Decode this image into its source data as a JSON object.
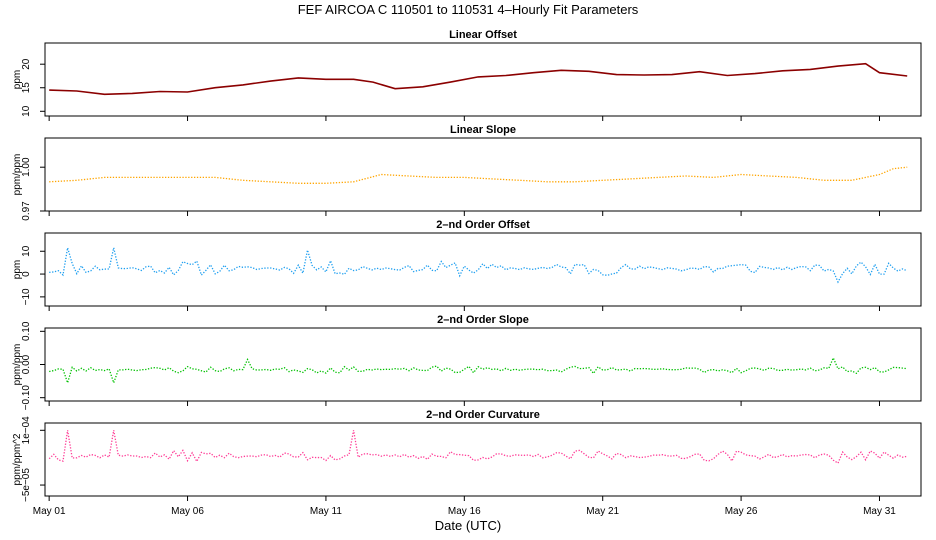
{
  "title": "FEF   AIRCOA C   110501 to 110531   4–Hourly Fit Parameters",
  "xlabel": "Date (UTC)",
  "x_ticks": [
    "May 01",
    "May 06",
    "May 11",
    "May 16",
    "May 21",
    "May 26",
    "May 31"
  ],
  "chart_data": [
    {
      "type": "line",
      "title": "Linear Offset",
      "ylabel": "ppm",
      "xlim": [
        0.85,
        32.5
      ],
      "ylim": [
        9.0,
        24.5
      ],
      "yticks": [
        10,
        15,
        20
      ],
      "ytick_labels": [
        "10",
        "15",
        "20"
      ],
      "color": "#8b0000",
      "style": "line",
      "series": [
        {
          "x": [
            1.0,
            2.0,
            3.0,
            4.0,
            5.0,
            6.0,
            7.0,
            8.0,
            9.0,
            10.0,
            11.0,
            12.0,
            12.7,
            13.5,
            14.5,
            15.5,
            16.5,
            17.5,
            18.5,
            19.5,
            20.5,
            21.5,
            22.5,
            23.5,
            24.5,
            25.5,
            26.5,
            27.5,
            28.5,
            29.5,
            30.5,
            31.0,
            32.0
          ],
          "y": [
            14.5,
            14.3,
            13.6,
            13.8,
            14.2,
            14.1,
            15.0,
            15.6,
            16.4,
            17.1,
            16.8,
            16.8,
            16.2,
            14.8,
            15.2,
            16.2,
            17.3,
            17.6,
            18.2,
            18.7,
            18.5,
            17.8,
            17.7,
            17.8,
            18.4,
            17.6,
            18.0,
            18.6,
            18.9,
            19.6,
            20.1,
            18.2,
            17.5
          ]
        }
      ]
    },
    {
      "type": "line",
      "title": "Linear Slope",
      "ylabel": "ppm/ppm",
      "xlim": [
        0.85,
        32.5
      ],
      "ylim": [
        0.97,
        1.02
      ],
      "yticks": [
        0.97,
        1.0
      ],
      "ytick_labels": [
        "0.97",
        "1.00"
      ],
      "color": "#ffa500",
      "style": "dotted",
      "series": [
        {
          "x": [
            1.0,
            2.0,
            3.0,
            4.0,
            5.0,
            6.0,
            7.0,
            8.0,
            9.0,
            10.0,
            11.0,
            12.0,
            13.0,
            14.0,
            15.0,
            16.0,
            17.0,
            18.0,
            19.0,
            20.0,
            21.0,
            22.0,
            23.0,
            24.0,
            25.0,
            26.0,
            27.0,
            28.0,
            29.0,
            30.0,
            31.0,
            31.5,
            32.0
          ],
          "y": [
            0.99,
            0.991,
            0.993,
            0.993,
            0.993,
            0.993,
            0.993,
            0.991,
            0.99,
            0.989,
            0.989,
            0.99,
            0.995,
            0.994,
            0.993,
            0.993,
            0.992,
            0.991,
            0.99,
            0.99,
            0.991,
            0.992,
            0.993,
            0.994,
            0.993,
            0.995,
            0.994,
            0.993,
            0.991,
            0.991,
            0.995,
            0.999,
            1.0
          ]
        }
      ]
    },
    {
      "type": "line",
      "title": "2–nd Order Offset",
      "ylabel": "ppm",
      "xlim": [
        0.85,
        32.5
      ],
      "ylim": [
        -14,
        18
      ],
      "yticks": [
        -10,
        0,
        10
      ],
      "ytick_labels": [
        "−10",
        "0",
        "10"
      ],
      "color": "#1e9ff0",
      "style": "dotted",
      "center": 2.5,
      "spread": 3.5,
      "seed": 11,
      "spikes": [
        [
          1.7,
          9
        ],
        [
          3.4,
          9
        ],
        [
          10.3,
          8
        ],
        [
          29.5,
          -6
        ]
      ],
      "series": [
        {
          "name": "",
          "x": [],
          "y": []
        }
      ]
    },
    {
      "type": "line",
      "title": "2–nd Order Slope",
      "ylabel": "ppm/ppm",
      "xlim": [
        0.85,
        32.5
      ],
      "ylim": [
        -0.11,
        0.11
      ],
      "yticks": [
        -0.1,
        0.0,
        0.1
      ],
      "ytick_labels": [
        "−0.10",
        "0.00",
        "0.10"
      ],
      "color": "#00c000",
      "style": "dotted",
      "center": -0.015,
      "spread": 0.012,
      "seed": 23,
      "spikes": [
        [
          1.7,
          -0.04
        ],
        [
          3.4,
          -0.04
        ],
        [
          8.2,
          0.03
        ],
        [
          29.4,
          0.035
        ]
      ],
      "series": [
        {
          "name": "",
          "x": [],
          "y": []
        }
      ]
    },
    {
      "type": "line",
      "title": "2–nd Order Curvature",
      "ylabel": "ppm/ppm^2",
      "xlim": [
        0.85,
        32.5
      ],
      "ylim": [
        -8e-05,
        0.00012
      ],
      "yticks": [
        -5e-05,
        0.0001
      ],
      "ytick_labels": [
        "−5e−05",
        "1e−04"
      ],
      "color": "#ff3c96",
      "style": "dotted",
      "center": 3e-05,
      "spread": 1.6e-05,
      "seed": 37,
      "spikes": [
        [
          1.7,
          7e-05
        ],
        [
          3.4,
          7e-05
        ],
        [
          12.0,
          7e-05
        ],
        [
          29.5,
          -2e-05
        ]
      ],
      "series": [
        {
          "name": "",
          "x": [],
          "y": []
        }
      ]
    }
  ]
}
